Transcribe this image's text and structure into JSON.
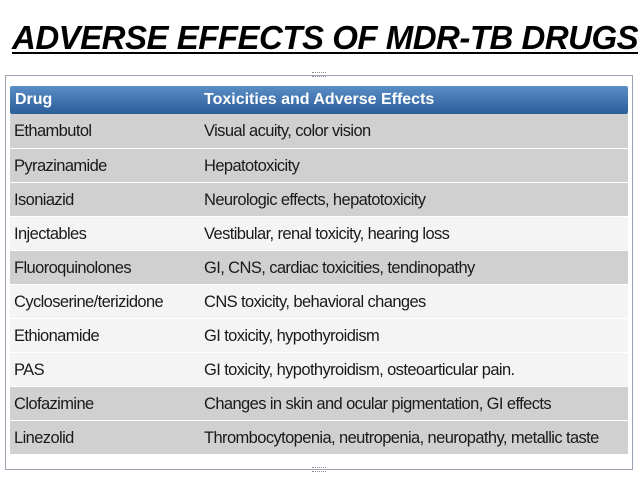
{
  "slide": {
    "title": "ADVERSE EFFECTS OF MDR-TB DRUGS"
  },
  "table": {
    "header": {
      "drug": "Drug",
      "effects": "Toxicities and Adverse Effects"
    },
    "rows": [
      {
        "drug": "Ethambutol",
        "effects": "Visual acuity, color vision",
        "shade": "gray"
      },
      {
        "drug": "Pyrazinamide",
        "effects": "Hepatotoxicity",
        "shade": "gray"
      },
      {
        "drug": "Isoniazid",
        "effects": "Neurologic effects, hepatotoxicity",
        "shade": "gray"
      },
      {
        "drug": "Injectables",
        "effects": "Vestibular, renal toxicity, hearing loss",
        "shade": "white"
      },
      {
        "drug": "Fluoroquinolones",
        "effects": "GI, CNS, cardiac toxicities, tendinopathy",
        "shade": "gray"
      },
      {
        "drug": "Cycloserine/terizidone",
        "effects": "CNS toxicity, behavioral changes",
        "shade": "white"
      },
      {
        "drug": "Ethionamide",
        "effects": "GI toxicity, hypothyroidism",
        "shade": "white"
      },
      {
        "drug": "PAS",
        "effects": "GI toxicity, hypothyroidism, osteoarticular pain.",
        "shade": "white"
      },
      {
        "drug": "Clofazimine",
        "effects": "Changes in skin and ocular pigmentation, GI effects",
        "shade": "gray"
      },
      {
        "drug": "Linezolid",
        "effects": "Thrombocytopenia, neutropenia, neuropathy, metallic taste",
        "shade": "gray"
      }
    ],
    "colors": {
      "header": "#3a6ead",
      "gray_row": "#d0d0d0",
      "white_row": "#f4f4f4"
    }
  }
}
